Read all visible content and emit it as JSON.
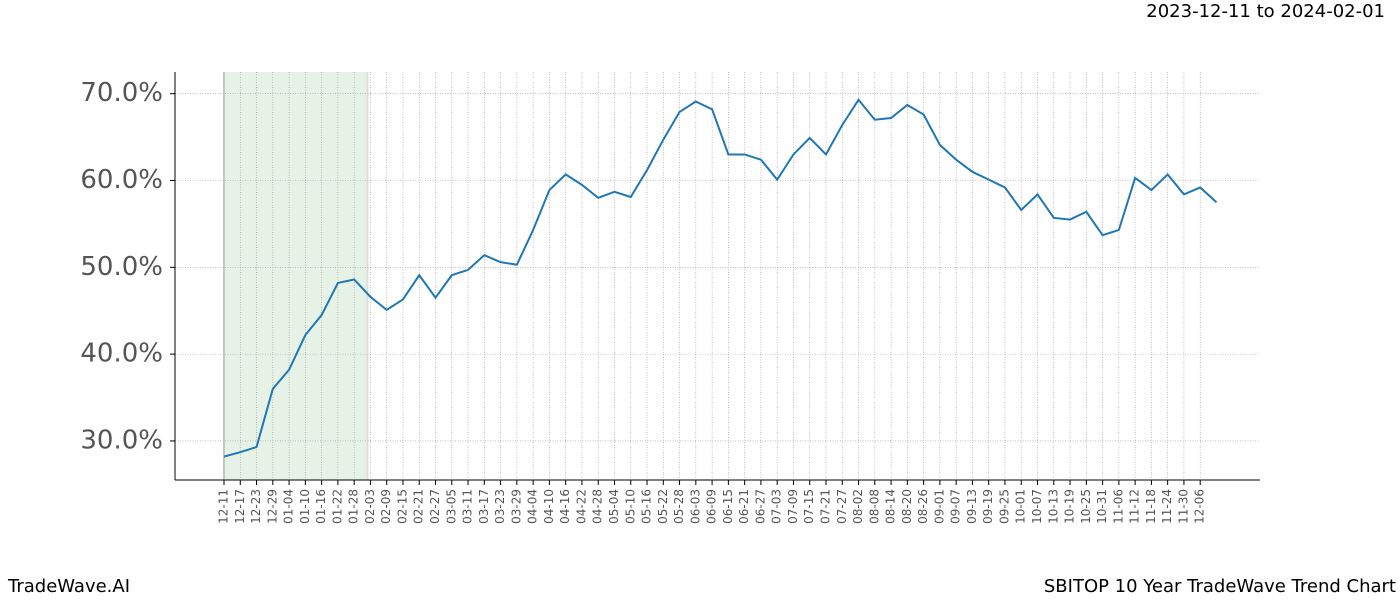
{
  "chart_data": {
    "type": "line",
    "title": "SBITOP 10 Year TradeWave Trend Chart",
    "subtitle": "2023-12-11 to 2024-02-01",
    "brand": "TradeWave.AI",
    "categories": [
      "12-11",
      "12-17",
      "12-23",
      "12-29",
      "01-04",
      "01-10",
      "01-16",
      "01-22",
      "01-28",
      "02-03",
      "02-09",
      "02-15",
      "02-21",
      "02-27",
      "03-05",
      "03-11",
      "03-17",
      "03-23",
      "03-29",
      "04-04",
      "04-10",
      "04-16",
      "04-22",
      "04-28",
      "05-04",
      "05-10",
      "05-16",
      "05-22",
      "05-28",
      "06-03",
      "06-09",
      "06-15",
      "06-21",
      "06-27",
      "07-03",
      "07-09",
      "07-15",
      "07-21",
      "07-27",
      "08-02",
      "08-08",
      "08-14",
      "08-20",
      "08-26",
      "09-01",
      "09-07",
      "09-13",
      "09-19",
      "09-25",
      "10-01",
      "10-07",
      "10-13",
      "10-19",
      "10-25",
      "10-31",
      "11-06",
      "11-12",
      "11-18",
      "11-24",
      "11-30",
      "12-06",
      null
    ],
    "series": [
      {
        "color": "#1f77b4",
        "values": [
          28.2,
          28.7,
          29.3,
          36.0,
          38.2,
          42.2,
          44.5,
          48.2,
          48.6,
          46.6,
          45.1,
          46.3,
          49.1,
          46.5,
          49.1,
          49.7,
          51.4,
          50.6,
          50.3,
          54.3,
          58.9,
          60.7,
          59.5,
          58.0,
          58.7,
          58.1,
          61.2,
          64.7,
          67.9,
          69.1,
          68.2,
          63.0,
          63.0,
          62.4,
          60.1,
          63.0,
          64.9,
          63.0,
          66.4,
          69.3,
          67.0,
          67.2,
          68.7,
          67.6,
          64.1,
          62.4,
          61.0,
          60.1,
          59.2,
          56.6,
          58.4,
          55.7,
          55.5,
          56.4,
          53.7,
          54.3,
          60.3,
          58.9,
          60.7,
          58.4,
          59.2,
          57.5
        ]
      }
    ],
    "highlight": {
      "from": "12-11",
      "to": "02-03",
      "color": "#e6f2e6"
    },
    "ylim": [
      25.5,
      72.5
    ],
    "yticks": [
      {
        "value": 30,
        "label": "30.0%"
      },
      {
        "value": 40,
        "label": "40.0%"
      },
      {
        "value": 50,
        "label": "50.0%"
      },
      {
        "value": 60,
        "label": "60.0%"
      },
      {
        "value": 70,
        "label": "70.0%"
      }
    ],
    "grid": true
  }
}
